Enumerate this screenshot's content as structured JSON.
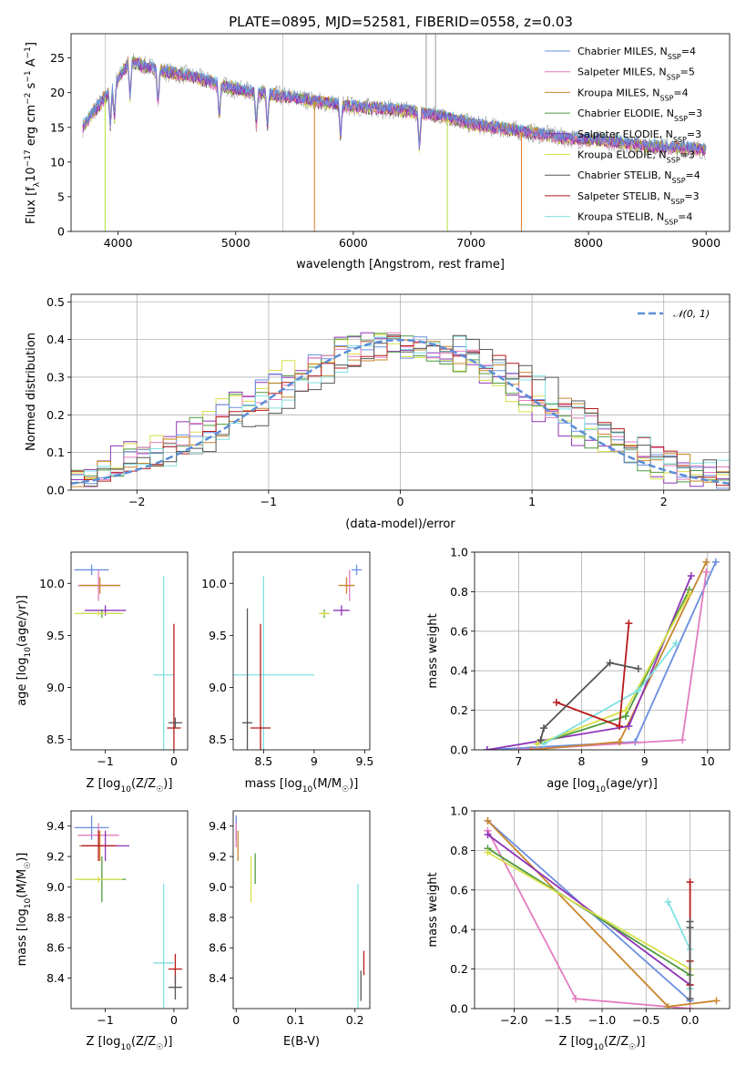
{
  "title": "PLATE=0895, MJD=52581, FIBERID=0558, z=0.03",
  "colors": {
    "cm": "#6a8fe0",
    "sm": "#e37cc0",
    "km": "#c9862f",
    "ce": "#4f9a3e",
    "se": "#8e33b8",
    "ke": "#d8e04a",
    "cs": "#555555",
    "ss": "#b81a1a",
    "ks": "#7fe0e0",
    "normal": "#5b8ed6",
    "gray": "#aaaaaa",
    "orange": "#e07b2a",
    "darkorange": "#cc6f1f",
    "lime": "#b7e23a",
    "green": "#2f8a2f"
  },
  "legend": [
    {
      "key": "cm",
      "label": "Chabrier MILES, N",
      "n": "4"
    },
    {
      "key": "sm",
      "label": "Salpeter MILES, N",
      "n": "5"
    },
    {
      "key": "km",
      "label": "Kroupa MILES, N",
      "n": "4"
    },
    {
      "key": "ce",
      "label": "Chabrier ELODIE, N",
      "n": "3"
    },
    {
      "key": "se",
      "label": "Salpeter ELODIE, N",
      "n": "3"
    },
    {
      "key": "ke",
      "label": "Kroupa ELODIE, N",
      "n": "3"
    },
    {
      "key": "cs",
      "label": "Chabrier STELIB, N",
      "n": "4"
    },
    {
      "key": "ss",
      "label": "Salpeter STELIB, N",
      "n": "3"
    },
    {
      "key": "ks",
      "label": "Kroupa STELIB, N",
      "n": "4"
    }
  ],
  "legend_sub": "SSP",
  "chart_data": [
    {
      "type": "line",
      "name": "spectrum",
      "xlabel": "wavelength [Angstrom, rest frame]",
      "ylabel_main": "Flux [f",
      "ylabel_unit": "10",
      "ylabel_exp": "-17",
      "ylabel_tail": " erg cm",
      "xlim": [
        3600,
        9200
      ],
      "ylim": [
        0,
        28.5
      ],
      "xticks": [
        4000,
        5000,
        6000,
        7000,
        8000,
        9000
      ],
      "yticks": [
        0,
        5,
        10,
        15,
        20,
        25
      ],
      "continuum_x": [
        3700,
        3800,
        3900,
        4000,
        4100,
        4200,
        4400,
        4600,
        4800,
        5000,
        5200,
        5400,
        5600,
        5800,
        6000,
        6200,
        6400,
        6600,
        6800,
        7000,
        7200,
        7400,
        7600,
        7800,
        8000,
        8200,
        8400,
        8600,
        8800,
        9000
      ],
      "continuum_y": [
        15,
        17.5,
        19.5,
        22,
        24.5,
        24,
        23,
        22.5,
        21.5,
        20.5,
        20,
        19.5,
        19,
        18.5,
        18,
        17.8,
        17.5,
        17,
        16.5,
        15.5,
        15,
        14.5,
        14,
        13.5,
        13.2,
        13,
        12.5,
        12.2,
        12,
        11.8
      ],
      "absorption_lines": [
        3934,
        3969,
        4102,
        4340,
        4861,
        5175,
        5270,
        5892,
        6563
      ],
      "emission_spikes": [
        6620,
        6700
      ]
    },
    {
      "type": "bar",
      "name": "residual-histogram",
      "xlabel": "(data-model)/error",
      "ylabel": "Normed distribution",
      "xlim": [
        -2.5,
        2.5
      ],
      "ylim": [
        0,
        0.52
      ],
      "xticks": [
        -2,
        -1,
        0,
        1,
        2
      ],
      "yticks": [
        0.0,
        0.1,
        0.2,
        0.3,
        0.4,
        0.5
      ],
      "legend": "N(0,1)",
      "bin_width": 0.1
    },
    {
      "type": "scatter",
      "name": "age-vs-Z",
      "xlabel": "Z [log10(Z/Z☉)]",
      "ylabel": "age [log10(age/yr)]",
      "xlim": [
        -1.5,
        0.2
      ],
      "ylim": [
        8.4,
        10.3
      ],
      "xticks": [
        -1,
        0
      ],
      "yticks": [
        8.5,
        9.0,
        9.5,
        10.0
      ],
      "points": [
        {
          "k": "cm",
          "x": -1.2,
          "y": 10.13,
          "ex": 0.25,
          "ey": 0.05
        },
        {
          "k": "sm",
          "x": -1.1,
          "y": 9.98,
          "ex": 0.3,
          "ey": 0.15
        },
        {
          "k": "km",
          "x": -1.08,
          "y": 9.98,
          "ex": 0.3,
          "ey": 0.08
        },
        {
          "k": "se",
          "x": -1.0,
          "y": 9.74,
          "ex": 0.3,
          "ey": 0.05
        },
        {
          "k": "ce",
          "x": -1.05,
          "y": 9.71,
          "ex": 0.3,
          "ey": 0.04
        },
        {
          "k": "ke",
          "x": -1.1,
          "y": 9.71,
          "ex": 0.35,
          "ey": 0.02
        },
        {
          "k": "ks",
          "x": -0.15,
          "y": 9.12,
          "ex": 0.15,
          "ey": 0.95
        },
        {
          "k": "ss",
          "x": 0.0,
          "y": 8.61,
          "ex": 0.1,
          "ey": 1.0
        },
        {
          "k": "cs",
          "x": 0.02,
          "y": 8.66,
          "ex": 0.1,
          "ey": 0.05
        }
      ]
    },
    {
      "type": "scatter",
      "name": "age-vs-mass",
      "xlabel": "mass [log10(M/M☉)]",
      "xlim": [
        8.2,
        9.55
      ],
      "ylim": [
        8.4,
        10.3
      ],
      "xticks": [
        8.5,
        9.0,
        9.5
      ],
      "points": [
        {
          "k": "cm",
          "x": 9.42,
          "y": 10.13,
          "ex": 0.05,
          "ey": 0.05
        },
        {
          "k": "sm",
          "x": 9.35,
          "y": 9.98,
          "ex": 0.05,
          "ey": 0.15
        },
        {
          "k": "km",
          "x": 9.32,
          "y": 9.98,
          "ex": 0.08,
          "ey": 0.08
        },
        {
          "k": "se",
          "x": 9.27,
          "y": 9.74,
          "ex": 0.08,
          "ey": 0.05
        },
        {
          "k": "ce",
          "x": 9.1,
          "y": 9.71,
          "ex": 0.05,
          "ey": 0.04
        },
        {
          "k": "ke",
          "x": 9.1,
          "y": 9.71,
          "ex": 0.05,
          "ey": 0.02
        },
        {
          "k": "ks",
          "x": 8.5,
          "y": 9.12,
          "ex": 0.5,
          "ey": 0.95
        },
        {
          "k": "ss",
          "x": 8.47,
          "y": 8.61,
          "ex": 0.1,
          "ey": 1.0
        },
        {
          "k": "cs",
          "x": 8.34,
          "y": 8.66,
          "ex": 0.05,
          "ey": 1.1
        }
      ]
    },
    {
      "type": "line",
      "name": "mass-weight-vs-age",
      "xlabel": "age [log10(age/yr)]",
      "ylabel": "mass weight",
      "xlim": [
        6.3,
        10.35
      ],
      "ylim": [
        0,
        1.0
      ],
      "xticks": [
        7,
        8,
        9,
        10
      ],
      "yticks": [
        0.0,
        0.2,
        0.4,
        0.6,
        0.8,
        1.0
      ],
      "series": [
        {
          "k": "cm",
          "x": [
            6.5,
            8.85,
            10.13
          ],
          "y": [
            0.0,
            0.04,
            0.95
          ]
        },
        {
          "k": "sm",
          "x": [
            7.0,
            9.6,
            9.98
          ],
          "y": [
            0.0,
            0.05,
            0.9
          ]
        },
        {
          "k": "km",
          "x": [
            7.2,
            8.6,
            9.98
          ],
          "y": [
            0.0,
            0.04,
            0.95
          ]
        },
        {
          "k": "se",
          "x": [
            6.5,
            8.75,
            9.74
          ],
          "y": [
            0.0,
            0.12,
            0.88
          ]
        },
        {
          "k": "ce",
          "x": [
            7.3,
            8.7,
            9.71
          ],
          "y": [
            0.03,
            0.17,
            0.81
          ]
        },
        {
          "k": "ke",
          "x": [
            7.3,
            8.7,
            9.71
          ],
          "y": [
            0.03,
            0.2,
            0.79
          ]
        },
        {
          "k": "ks",
          "x": [
            7.4,
            8.9,
            9.5
          ],
          "y": [
            0.03,
            0.3,
            0.54
          ]
        },
        {
          "k": "ss",
          "x": [
            7.6,
            8.6,
            8.75
          ],
          "y": [
            0.24,
            0.12,
            0.64
          ]
        },
        {
          "k": "cs",
          "x": [
            7.35,
            7.4,
            8.45,
            8.9
          ],
          "y": [
            0.05,
            0.11,
            0.44,
            0.41
          ]
        }
      ]
    },
    {
      "type": "scatter",
      "name": "mass-vs-Z",
      "xlabel": "Z [log10(Z/Z☉)]",
      "ylabel": "mass [log10(M/M☉)]",
      "xlim": [
        -1.5,
        0.2
      ],
      "ylim": [
        8.2,
        9.5
      ],
      "xticks": [
        -1,
        0
      ],
      "yticks": [
        8.4,
        8.6,
        8.8,
        9.0,
        9.2,
        9.4
      ],
      "points": [
        {
          "k": "cm",
          "x": -1.2,
          "y": 9.39,
          "ex": 0.25,
          "ey": 0.08
        },
        {
          "k": "sm",
          "x": -1.1,
          "y": 9.34,
          "ex": 0.3,
          "ey": 0.08
        },
        {
          "k": "km",
          "x": -1.08,
          "y": 9.27,
          "ex": 0.3,
          "ey": 0.1
        },
        {
          "k": "se",
          "x": -1.0,
          "y": 9.27,
          "ex": 0.35,
          "ey": 0.1
        },
        {
          "k": "ss",
          "x": -1.1,
          "y": 9.27,
          "ex": 0.25,
          "ey": 0.1
        },
        {
          "k": "ce",
          "x": -1.05,
          "y": 9.05,
          "ex": 0.35,
          "ey": 0.15
        },
        {
          "k": "ke",
          "x": -1.1,
          "y": 9.05,
          "ex": 0.35,
          "ey": 0.02
        },
        {
          "k": "ks",
          "x": -0.15,
          "y": 8.5,
          "ex": 0.15,
          "ey": 0.52
        },
        {
          "k": "ss",
          "x": 0.02,
          "y": 8.46,
          "ex": 0.1,
          "ey": 0.1
        },
        {
          "k": "cs",
          "x": 0.02,
          "y": 8.34,
          "ex": 0.1,
          "ey": 0.08
        }
      ]
    },
    {
      "type": "scatter",
      "name": "mass-vs-EBV",
      "xlabel": "E(B-V)",
      "xlim": [
        -0.005,
        0.225
      ],
      "ylim": [
        8.2,
        9.5
      ],
      "xticks": [
        0.0,
        0.1,
        0.2
      ],
      "points": [
        {
          "k": "cm",
          "x": 0.0,
          "y": 9.39,
          "ey": 0.08
        },
        {
          "k": "sm",
          "x": 0.0,
          "y": 9.34,
          "ey": 0.08
        },
        {
          "k": "km",
          "x": 0.003,
          "y": 9.27,
          "ey": 0.1
        },
        {
          "k": "ke",
          "x": 0.025,
          "y": 9.05,
          "ey": 0.15
        },
        {
          "k": "ce",
          "x": 0.032,
          "y": 9.12,
          "ey": 0.1
        },
        {
          "k": "ks",
          "x": 0.205,
          "y": 8.6,
          "ey": 0.42
        },
        {
          "k": "ss",
          "x": 0.215,
          "y": 8.5,
          "ey": 0.08
        },
        {
          "k": "cs",
          "x": 0.21,
          "y": 8.35,
          "ey": 0.1
        }
      ]
    },
    {
      "type": "line",
      "name": "mass-weight-vs-Z",
      "xlabel": "Z [log10(Z/Z☉)]",
      "ylabel": "mass weight",
      "xlim": [
        -2.45,
        0.45
      ],
      "ylim": [
        0,
        1.0
      ],
      "xticks": [
        -2.0,
        -1.5,
        -1.0,
        -0.5,
        0.0
      ],
      "yticks": [
        0.0,
        0.2,
        0.4,
        0.6,
        0.8,
        1.0
      ],
      "series": [
        {
          "k": "cm",
          "x": [
            -2.3,
            0.0
          ],
          "y": [
            0.95,
            0.04
          ]
        },
        {
          "k": "sm",
          "x": [
            -2.3,
            -1.3,
            0.0
          ],
          "y": [
            0.9,
            0.05,
            0.0
          ]
        },
        {
          "k": "km",
          "x": [
            -2.3,
            -0.25,
            0.3
          ],
          "y": [
            0.95,
            0.01,
            0.04
          ]
        },
        {
          "k": "se",
          "x": [
            -2.3,
            0.0
          ],
          "y": [
            0.88,
            0.12
          ]
        },
        {
          "k": "ce",
          "x": [
            -2.3,
            0.0
          ],
          "y": [
            0.81,
            0.17
          ]
        },
        {
          "k": "ke",
          "x": [
            -2.3,
            0.0
          ],
          "y": [
            0.79,
            0.2
          ]
        },
        {
          "k": "ks",
          "x": [
            -0.25,
            0.0,
            0.0
          ],
          "y": [
            0.54,
            0.3,
            0.1
          ]
        },
        {
          "k": "ss",
          "x": [
            0.0,
            0.0,
            0.0
          ],
          "y": [
            0.64,
            0.24,
            0.12
          ]
        },
        {
          "k": "cs",
          "x": [
            0.0,
            0.0,
            0.0
          ],
          "y": [
            0.44,
            0.41,
            0.05
          ]
        }
      ]
    }
  ]
}
